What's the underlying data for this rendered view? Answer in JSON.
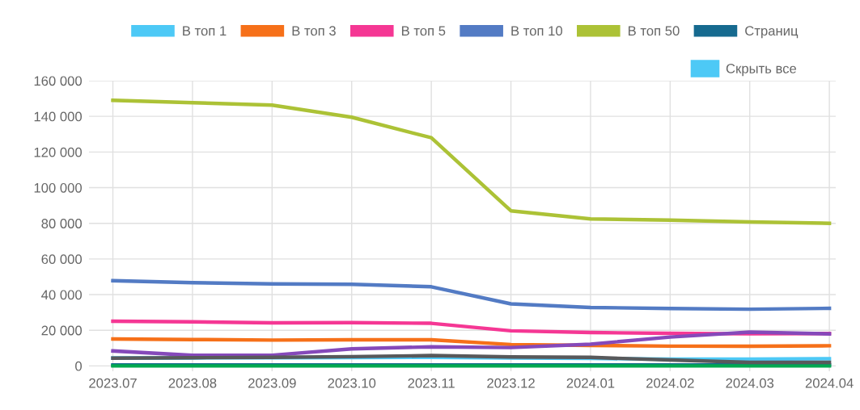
{
  "chart_data": {
    "type": "line",
    "categories": [
      "2023.07",
      "2023.08",
      "2023.09",
      "2023.10",
      "2023.11",
      "2023.12",
      "2024.01",
      "2024.02",
      "2024.03",
      "2024.04"
    ],
    "series": [
      {
        "name": "В топ 1",
        "color": "#4dc9f6",
        "values": [
          4500,
          4500,
          4600,
          4700,
          4800,
          4500,
          4200,
          3800,
          3800,
          4000
        ]
      },
      {
        "name": "В топ 3",
        "color": "#f67019",
        "values": [
          15100,
          14800,
          14500,
          14700,
          14700,
          12000,
          11500,
          11100,
          11000,
          11300
        ]
      },
      {
        "name": "В топ 5",
        "color": "#f53794",
        "values": [
          25100,
          24700,
          24200,
          24300,
          23900,
          19700,
          18700,
          18300,
          18000,
          18200
        ]
      },
      {
        "name": "В топ 10",
        "color": "#537bc4",
        "values": [
          47800,
          46700,
          46000,
          45800,
          44400,
          34800,
          32800,
          32200,
          31800,
          32300
        ]
      },
      {
        "name": "В топ 50",
        "color": "#acc236",
        "values": [
          149000,
          147700,
          146300,
          139500,
          128000,
          87000,
          82500,
          81800,
          80800,
          80000
        ]
      },
      {
        "name": "Страниц",
        "color": "#166a8f",
        "values": [
          500,
          500,
          500,
          500,
          500,
          500,
          500,
          500,
          500,
          500
        ]
      },
      {
        "color": "#00a950",
        "values": [
          0,
          0,
          0,
          0,
          0,
          0,
          0,
          0,
          0,
          0
        ]
      },
      {
        "color": "#8549ba",
        "values": [
          8400,
          5900,
          6000,
          9600,
          10700,
          10300,
          12200,
          16200,
          19000,
          18000
        ]
      },
      {
        "color": "#58595b",
        "values": [
          4400,
          4600,
          4800,
          5200,
          5800,
          5000,
          4800,
          3300,
          2000,
          2000
        ]
      }
    ],
    "ylim": [
      -3000,
      160000
    ],
    "yticks": [
      {
        "value": 0,
        "label": "0"
      },
      {
        "value": 20000,
        "label": "20 000"
      },
      {
        "value": 40000,
        "label": "40 000"
      },
      {
        "value": 60000,
        "label": "60 000"
      },
      {
        "value": 80000,
        "label": "80 000"
      },
      {
        "value": 100000,
        "label": "100 000"
      },
      {
        "value": 120000,
        "label": "120 000"
      },
      {
        "value": 140000,
        "label": "140 000"
      },
      {
        "value": 160000,
        "label": "160 000"
      }
    ],
    "grid": true,
    "legend": "top",
    "marker": "none",
    "line_style": "solid",
    "annotations": [
      "Скрыть все"
    ]
  }
}
